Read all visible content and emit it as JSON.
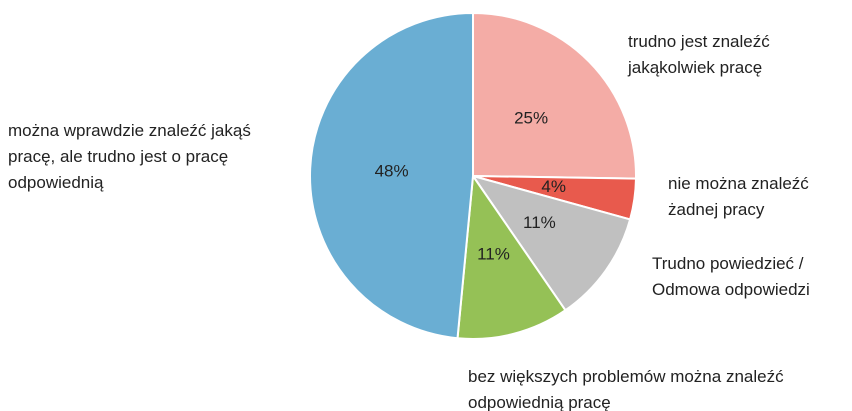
{
  "chart_data": {
    "type": "pie",
    "categories": [
      "trudno jest znaleźć jakąkolwiek pracę",
      "nie można znaleźć żadnej pracy",
      "Trudno powiedzieć / Odmowa odpowiedzi",
      "bez większych problemów można znaleźć odpowiednią pracę",
      "można wprawdzie znaleźć jakąś pracę, ale trudno jest o pracę odpowiednią"
    ],
    "values": [
      25,
      4,
      11,
      11,
      48
    ],
    "value_labels": [
      "25%",
      "4%",
      "11%",
      "11%",
      "48%"
    ],
    "colors": [
      "#f4aca6",
      "#e85a4d",
      "#c0c0c0",
      "#95c156",
      "#6aaed3"
    ]
  }
}
